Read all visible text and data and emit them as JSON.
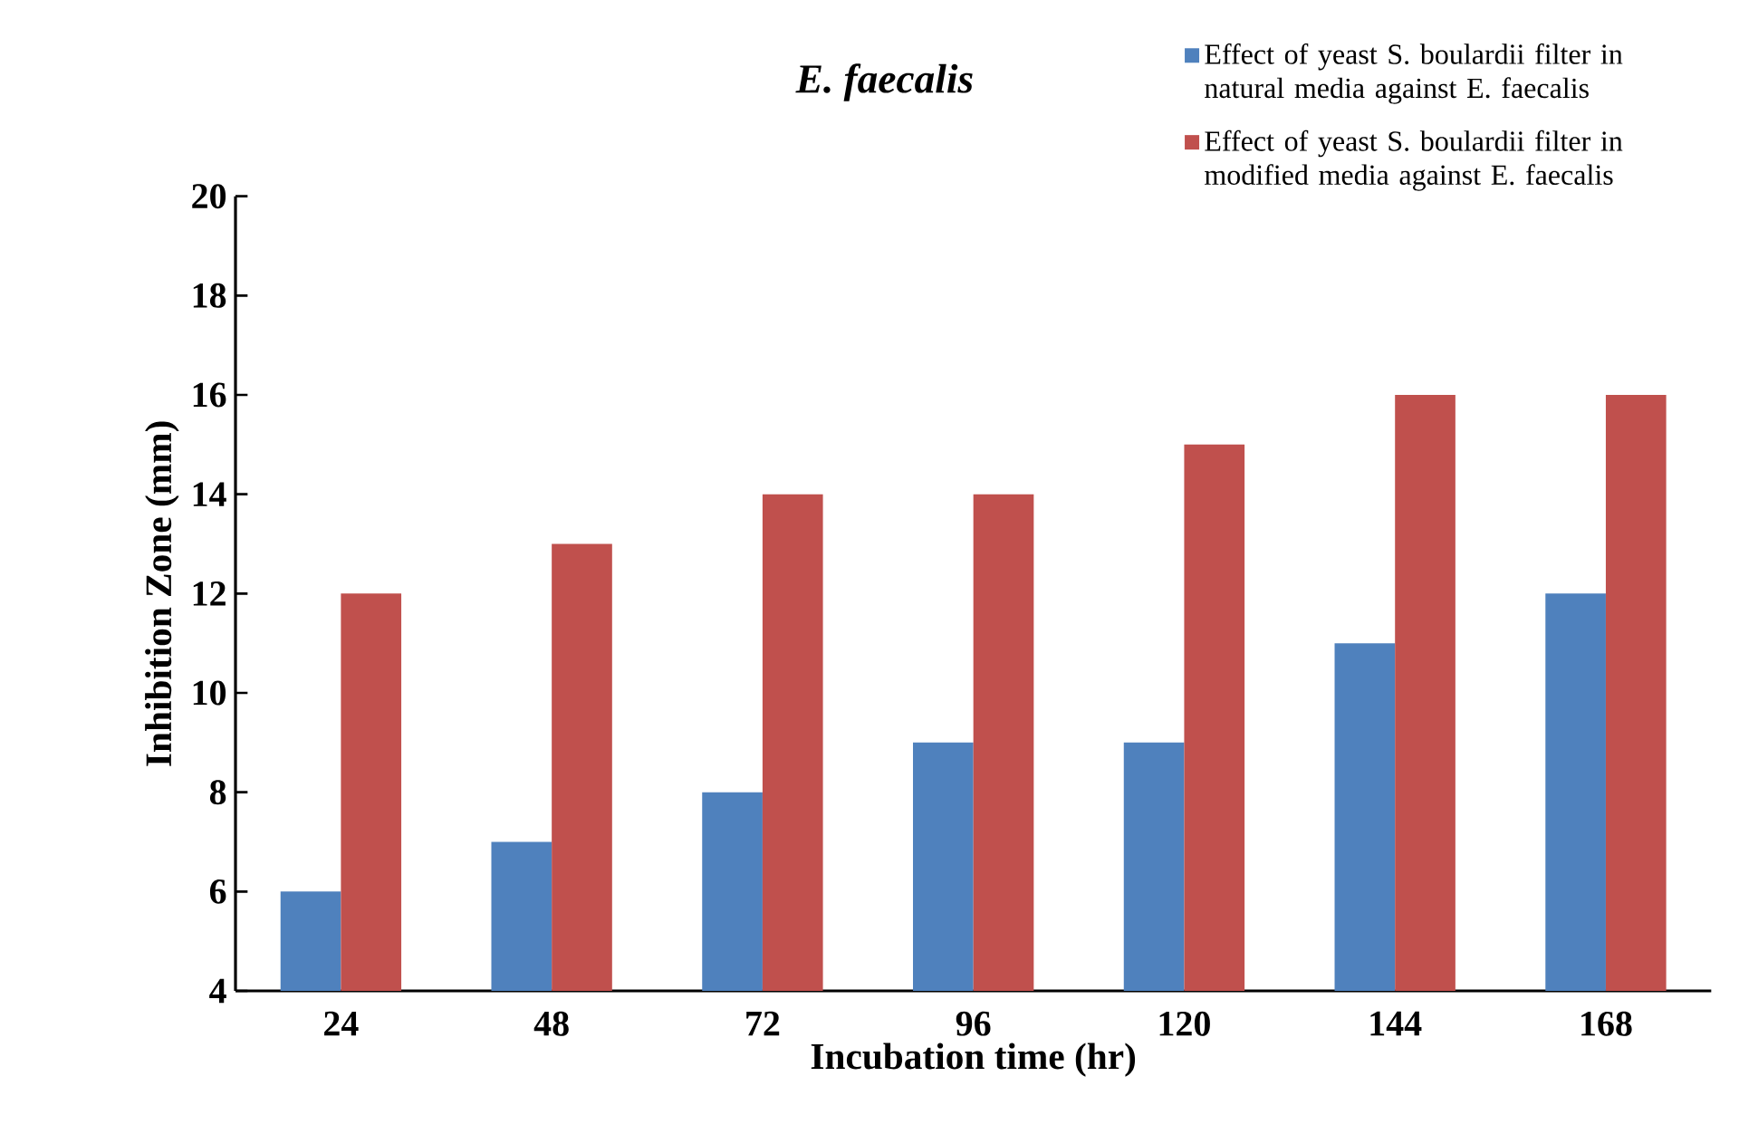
{
  "chart_data": {
    "type": "bar",
    "title": "E. faecalis",
    "xlabel": "Incubation time (hr)",
    "ylabel": "Inhibition Zone (mm)",
    "categories": [
      "24",
      "48",
      "72",
      "96",
      "120",
      "144",
      "168"
    ],
    "series": [
      {
        "name": "Effect of yeast S. boulardii filter in natural media against E. faecalis",
        "color": "#4f81bd",
        "values": [
          6,
          7,
          8,
          9,
          9,
          11,
          12
        ]
      },
      {
        "name": "Effect of yeast S. boulardii filter in modified media against E. faecalis",
        "color": "#c0504d",
        "values": [
          12,
          13,
          14,
          14,
          15,
          16,
          16
        ]
      }
    ],
    "ylim": [
      4,
      20
    ],
    "yticks": [
      4,
      6,
      8,
      10,
      12,
      14,
      16,
      18,
      20
    ],
    "grid": false,
    "legend": "top right"
  }
}
